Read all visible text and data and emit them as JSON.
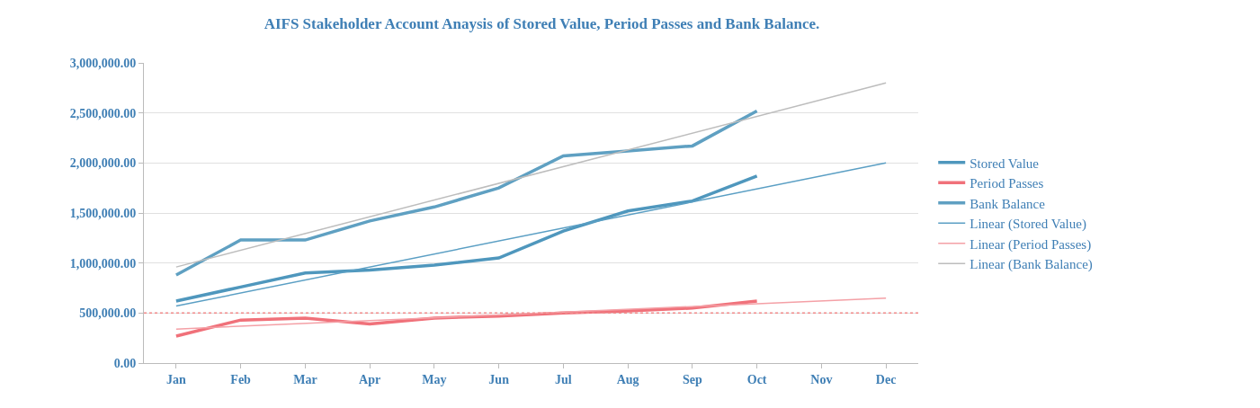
{
  "chart_data": {
    "type": "line",
    "title": "AIFS Stakeholder Account Anaysis of Stored Value, Period Passes and Bank Balance.",
    "categories": [
      "Jan",
      "Feb",
      "Mar",
      "Apr",
      "May",
      "Jun",
      "Jul",
      "Aug",
      "Sep",
      "Oct",
      "Nov",
      "Dec"
    ],
    "series": [
      {
        "name": "Stored Value",
        "color": "#4f97bd",
        "values": [
          620000,
          760000,
          900000,
          930000,
          980000,
          1050000,
          1320000,
          1520000,
          1620000,
          1870000,
          null,
          null
        ]
      },
      {
        "name": "Period Passes",
        "color": "#f0717a",
        "values": [
          270000,
          430000,
          450000,
          390000,
          450000,
          470000,
          500000,
          520000,
          550000,
          620000,
          null,
          null
        ]
      },
      {
        "name": "Bank Balance",
        "color": "#5fa0c2",
        "values": [
          880000,
          1230000,
          1230000,
          1420000,
          1560000,
          1750000,
          2070000,
          2120000,
          2170000,
          2520000,
          null,
          null
        ]
      },
      {
        "name": "Linear (Stored Value)",
        "color": "#5b9fc4",
        "x": [
          "Jan",
          "Dec"
        ],
        "values": [
          570000,
          2000000
        ]
      },
      {
        "name": "Linear (Period Passes)",
        "color": "#f4a0a6",
        "x": [
          "Jan",
          "Dec"
        ],
        "values": [
          340000,
          650000
        ]
      },
      {
        "name": "Linear (Bank Balance)",
        "color": "#bdbdbd",
        "x": [
          "Jan",
          "Dec"
        ],
        "values": [
          960000,
          2800000
        ]
      }
    ],
    "ylim": [
      0,
      3000000
    ],
    "yticks": [
      {
        "value": 0,
        "label": "0.00"
      },
      {
        "value": 500000,
        "label": "500,000.00"
      },
      {
        "value": 1000000,
        "label": "1,000,000.00"
      },
      {
        "value": 1500000,
        "label": "1,500,000.00"
      },
      {
        "value": 2000000,
        "label": "2,000,000.00"
      },
      {
        "value": 2500000,
        "label": "2,500,000.00"
      },
      {
        "value": 3000000,
        "label": "3,000,000.00"
      }
    ],
    "ref_lines": [
      {
        "axis": "y",
        "value": 500000,
        "color": "#f08a8a",
        "line_style": "dotted"
      }
    ],
    "grid": "y",
    "legend": "right",
    "marker": "none",
    "line_style": "solid"
  }
}
